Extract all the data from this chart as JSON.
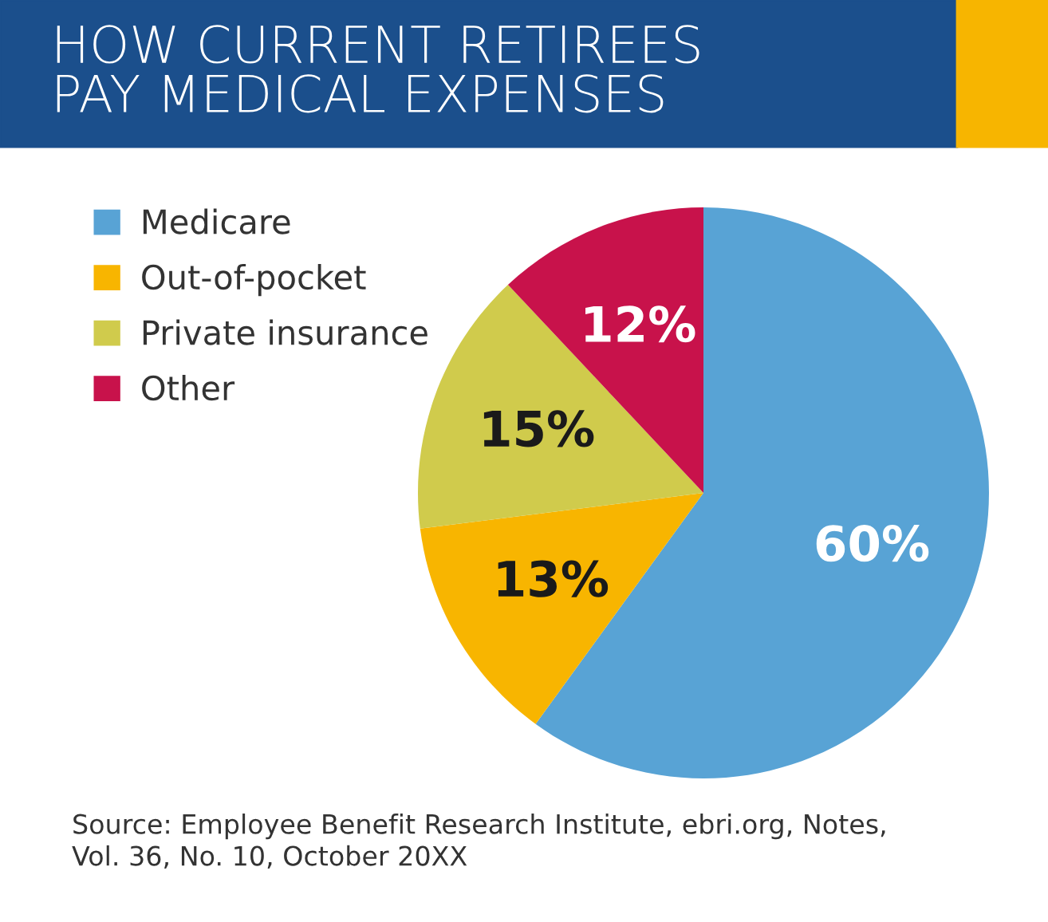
{
  "chart_data": {
    "type": "pie",
    "title": "HOW CURRENT RETIREES\nPAY MEDICAL EXPENSES",
    "categories": [
      "Medicare",
      "Out-of-pocket",
      "Private insurance",
      "Other"
    ],
    "values": [
      60,
      13,
      15,
      12
    ],
    "colors": [
      "#58a3d5",
      "#f8b500",
      "#d0cb4c",
      "#c8124b"
    ],
    "value_labels": [
      "60%",
      "13%",
      "15%",
      "12%"
    ],
    "legend": "top left",
    "annotations": [
      "Source: Employee Benefit Research Institute, ebri.org, Notes,\nVol. 36, No. 10, October 20XX"
    ]
  }
}
